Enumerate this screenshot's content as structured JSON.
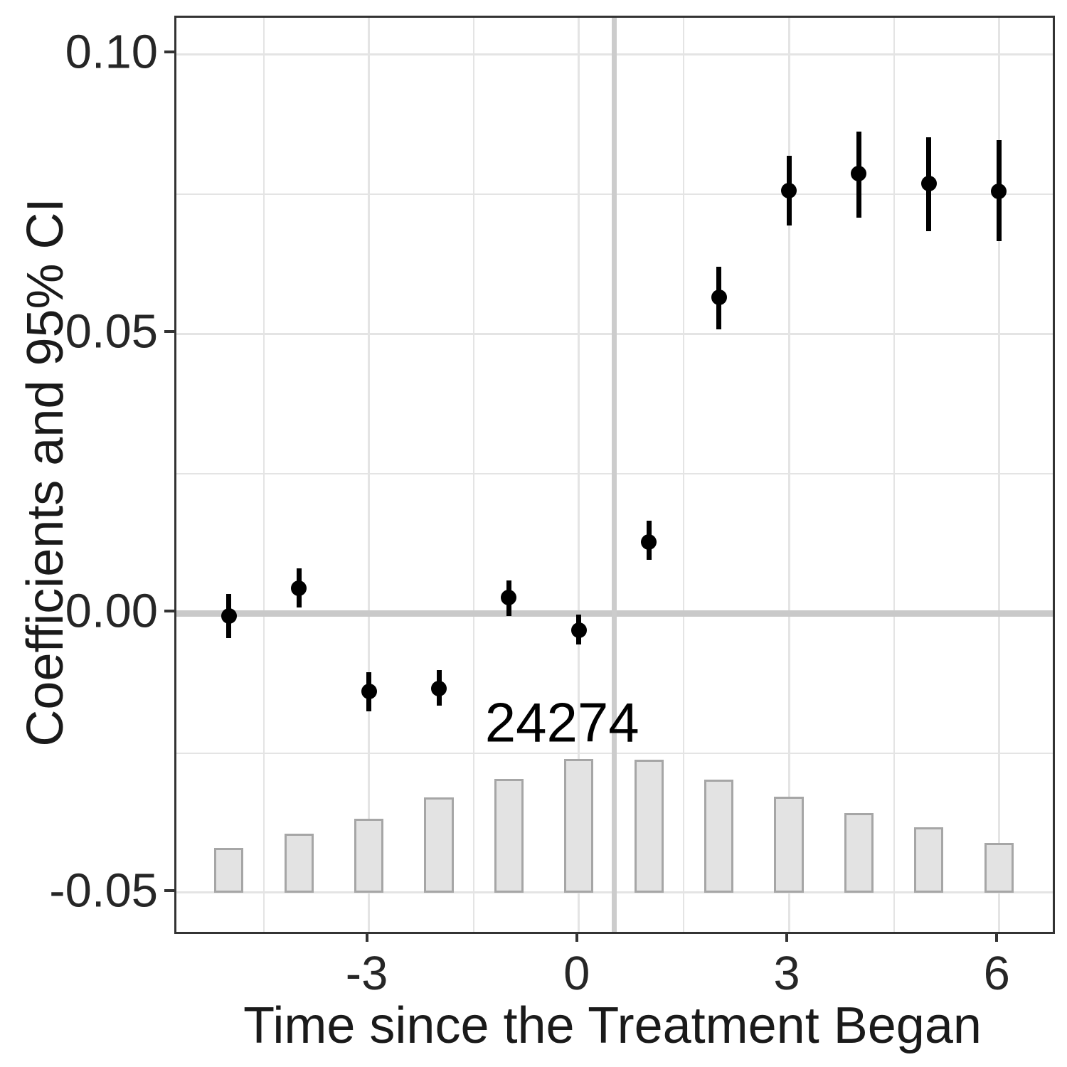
{
  "figure": {
    "background": "#ffffff",
    "panel_border_color": "#333333",
    "gridline_color": "#e4e4e4",
    "reference_line_color": "#c9c9c9",
    "bar_fill": "#e3e3e3",
    "bar_stroke": "#a6a6a6",
    "point_color": "#000000"
  },
  "chart_data": {
    "type": "scatter",
    "subtype": "event-study coefficients with 95% CI error bars and observation-count histogram",
    "title": "",
    "xlabel": "Time since the Treatment Began",
    "ylabel": "Coefficients and 95% CI",
    "xlim": [
      -5.75,
      6.77
    ],
    "ylim": [
      -0.057,
      0.1065
    ],
    "grid": "on, major every 3 (x) / 0.05 (y), minor every 1.5 (x) / 0.025 (y)",
    "legend": "none",
    "x_ticks": [
      {
        "value": -3,
        "label": "-3"
      },
      {
        "value": 0,
        "label": "0"
      },
      {
        "value": 3,
        "label": "3"
      },
      {
        "value": 6,
        "label": "6"
      }
    ],
    "y_ticks": [
      {
        "value": 0.1,
        "label": "0.10"
      },
      {
        "value": 0.05,
        "label": "0.05"
      },
      {
        "value": 0.0,
        "label": "0.00"
      },
      {
        "value": -0.05,
        "label": "-0.05"
      }
    ],
    "x_gridlines_major": [
      -3,
      0,
      3,
      6
    ],
    "x_gridlines_minor": [
      -4.5,
      -1.5,
      1.5,
      4.5
    ],
    "y_gridlines_major": [
      0.1,
      0.05,
      0.0,
      -0.05
    ],
    "y_gridlines_minor": [
      0.075,
      0.025,
      -0.025
    ],
    "reference_lines": {
      "hline_y": 0.0,
      "vline_x": 0.5
    },
    "points": [
      {
        "x": -5,
        "est": -0.0005,
        "lo": -0.0045,
        "hi": 0.0035
      },
      {
        "x": -4,
        "est": 0.0045,
        "lo": 0.001,
        "hi": 0.008
      },
      {
        "x": -3,
        "est": -0.014,
        "lo": -0.0175,
        "hi": -0.0105
      },
      {
        "x": -2,
        "est": -0.0135,
        "lo": -0.0165,
        "hi": -0.0102
      },
      {
        "x": -1,
        "est": 0.0028,
        "lo": -0.0005,
        "hi": 0.0058
      },
      {
        "x": 0,
        "est": -0.003,
        "lo": -0.0056,
        "hi": -0.0002
      },
      {
        "x": 1,
        "est": 0.0127,
        "lo": 0.0096,
        "hi": 0.0166
      },
      {
        "x": 2,
        "est": 0.0565,
        "lo": 0.0508,
        "hi": 0.062
      },
      {
        "x": 3,
        "est": 0.0756,
        "lo": 0.0694,
        "hi": 0.0818
      },
      {
        "x": 4,
        "est": 0.0786,
        "lo": 0.0707,
        "hi": 0.0861
      },
      {
        "x": 5,
        "est": 0.0768,
        "lo": 0.0683,
        "hi": 0.0851
      },
      {
        "x": 6,
        "est": 0.0755,
        "lo": 0.0666,
        "hi": 0.0846
      }
    ],
    "bars": {
      "baseline_y": -0.05,
      "width_x_units": 0.42,
      "max_count": 24274,
      "max_height_y_units": 0.0239,
      "counts": [
        {
          "x": -5,
          "count": 8150
        },
        {
          "x": -4,
          "count": 10750
        },
        {
          "x": -3,
          "count": 13450
        },
        {
          "x": -2,
          "count": 17350
        },
        {
          "x": -1,
          "count": 20700
        },
        {
          "x": 0,
          "count": 24274
        },
        {
          "x": 1,
          "count": 24200
        },
        {
          "x": 2,
          "count": 20600
        },
        {
          "x": 3,
          "count": 17400
        },
        {
          "x": 4,
          "count": 14450
        },
        {
          "x": 5,
          "count": 11900
        },
        {
          "x": 6,
          "count": 9050
        }
      ]
    },
    "annotation": {
      "text": "24274",
      "x": -0.21,
      "y": -0.02
    }
  }
}
